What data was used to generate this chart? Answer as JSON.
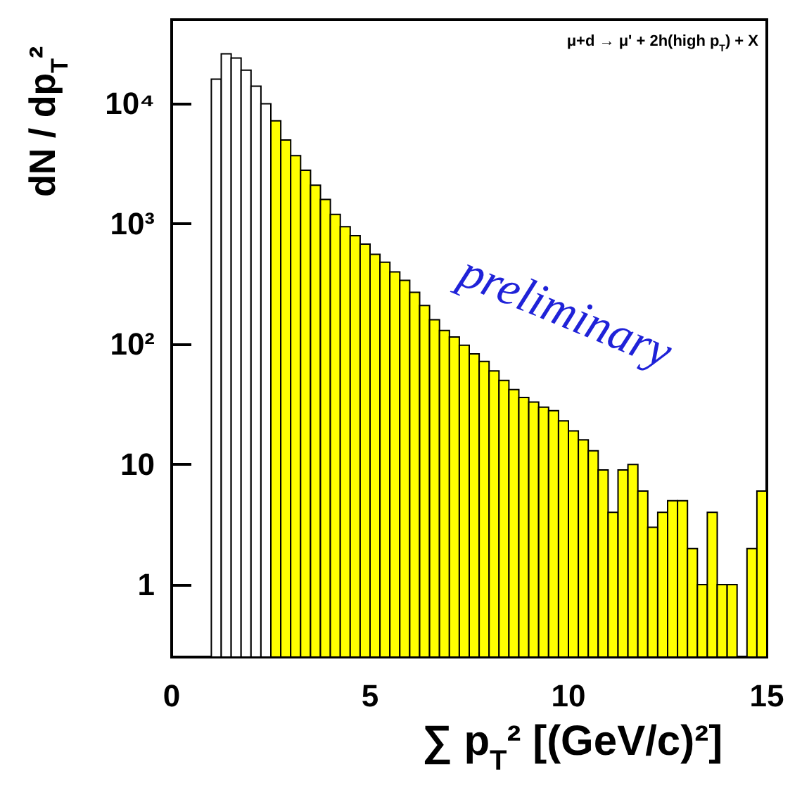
{
  "chart_data": {
    "type": "histogram",
    "xlabel": "∑ p$_{T}$² [(GeV/c)²]",
    "ylabel": "dN / dp$_{T}$²",
    "annotations": [
      "μ+d → μ' + 2h(high p$_{T}$) + X",
      "preliminary"
    ],
    "bins": [
      1.0,
      1.25,
      1.5,
      1.75,
      2.0,
      2.25,
      2.5,
      2.75,
      3.0,
      3.25,
      3.5,
      3.75,
      4.0,
      4.25,
      4.5,
      4.75,
      5.0,
      5.25,
      5.5,
      5.75,
      6.0,
      6.25,
      6.5,
      6.75,
      7.0,
      7.25,
      7.5,
      7.75,
      8.0,
      8.25,
      8.5,
      8.75,
      9.0,
      9.25,
      9.5,
      9.75,
      10.0,
      10.25,
      10.5,
      10.75,
      11.0,
      11.25,
      11.5,
      11.75,
      12.0,
      12.25,
      12.5,
      12.75,
      13.0,
      13.25,
      13.5,
      13.75,
      14.0,
      14.25,
      14.5,
      14.75,
      15.0
    ],
    "values": [
      16000,
      26000,
      24000,
      19000,
      14000,
      10000,
      7200,
      5000,
      3700,
      2800,
      2100,
      1600,
      1200,
      950,
      800,
      680,
      560,
      480,
      400,
      340,
      270,
      210,
      160,
      130,
      115,
      98,
      83,
      72,
      60,
      50,
      42,
      36,
      33,
      30,
      28,
      23,
      19,
      16,
      13,
      9,
      4,
      9,
      10,
      6,
      3,
      4,
      5,
      5,
      2,
      1,
      4,
      1,
      1,
      null,
      2,
      6
    ],
    "colors": [
      "#ffffff",
      "#ffffff",
      "#ffffff",
      "#ffffff",
      "#ffffff",
      "#ffffff",
      "#ffff00",
      "#ffff00",
      "#ffff00",
      "#ffff00",
      "#ffff00",
      "#ffff00",
      "#ffff00",
      "#ffff00",
      "#ffff00",
      "#ffff00",
      "#ffff00",
      "#ffff00",
      "#ffff00",
      "#ffff00",
      "#ffff00",
      "#ffff00",
      "#ffff00",
      "#ffff00",
      "#ffff00",
      "#ffff00",
      "#ffff00",
      "#ffff00",
      "#ffff00",
      "#ffff00",
      "#ffff00",
      "#ffff00",
      "#ffff00",
      "#ffff00",
      "#ffff00",
      "#ffff00",
      "#ffff00",
      "#ffff00",
      "#ffff00",
      "#ffff00",
      "#ffff00",
      "#ffff00",
      "#ffff00",
      "#ffff00",
      "#ffff00",
      "#ffff00",
      "#ffff00",
      "#ffff00",
      "#ffff00",
      "#ffff00",
      "#ffff00",
      "#ffff00",
      "#ffff00",
      "#ffff00",
      "#ffff00",
      "#ffff00"
    ],
    "xlim": [
      0,
      15
    ],
    "xticks": [
      0,
      5,
      10,
      15
    ],
    "ylim": [
      0.25,
      50000
    ],
    "yticks": [
      1,
      10,
      {
        "value": 100,
        "label": "10²"
      },
      {
        "value": 1000,
        "label": "10³"
      },
      {
        "value": 10000,
        "label": "10⁴"
      }
    ],
    "log": true,
    "grid": false
  }
}
